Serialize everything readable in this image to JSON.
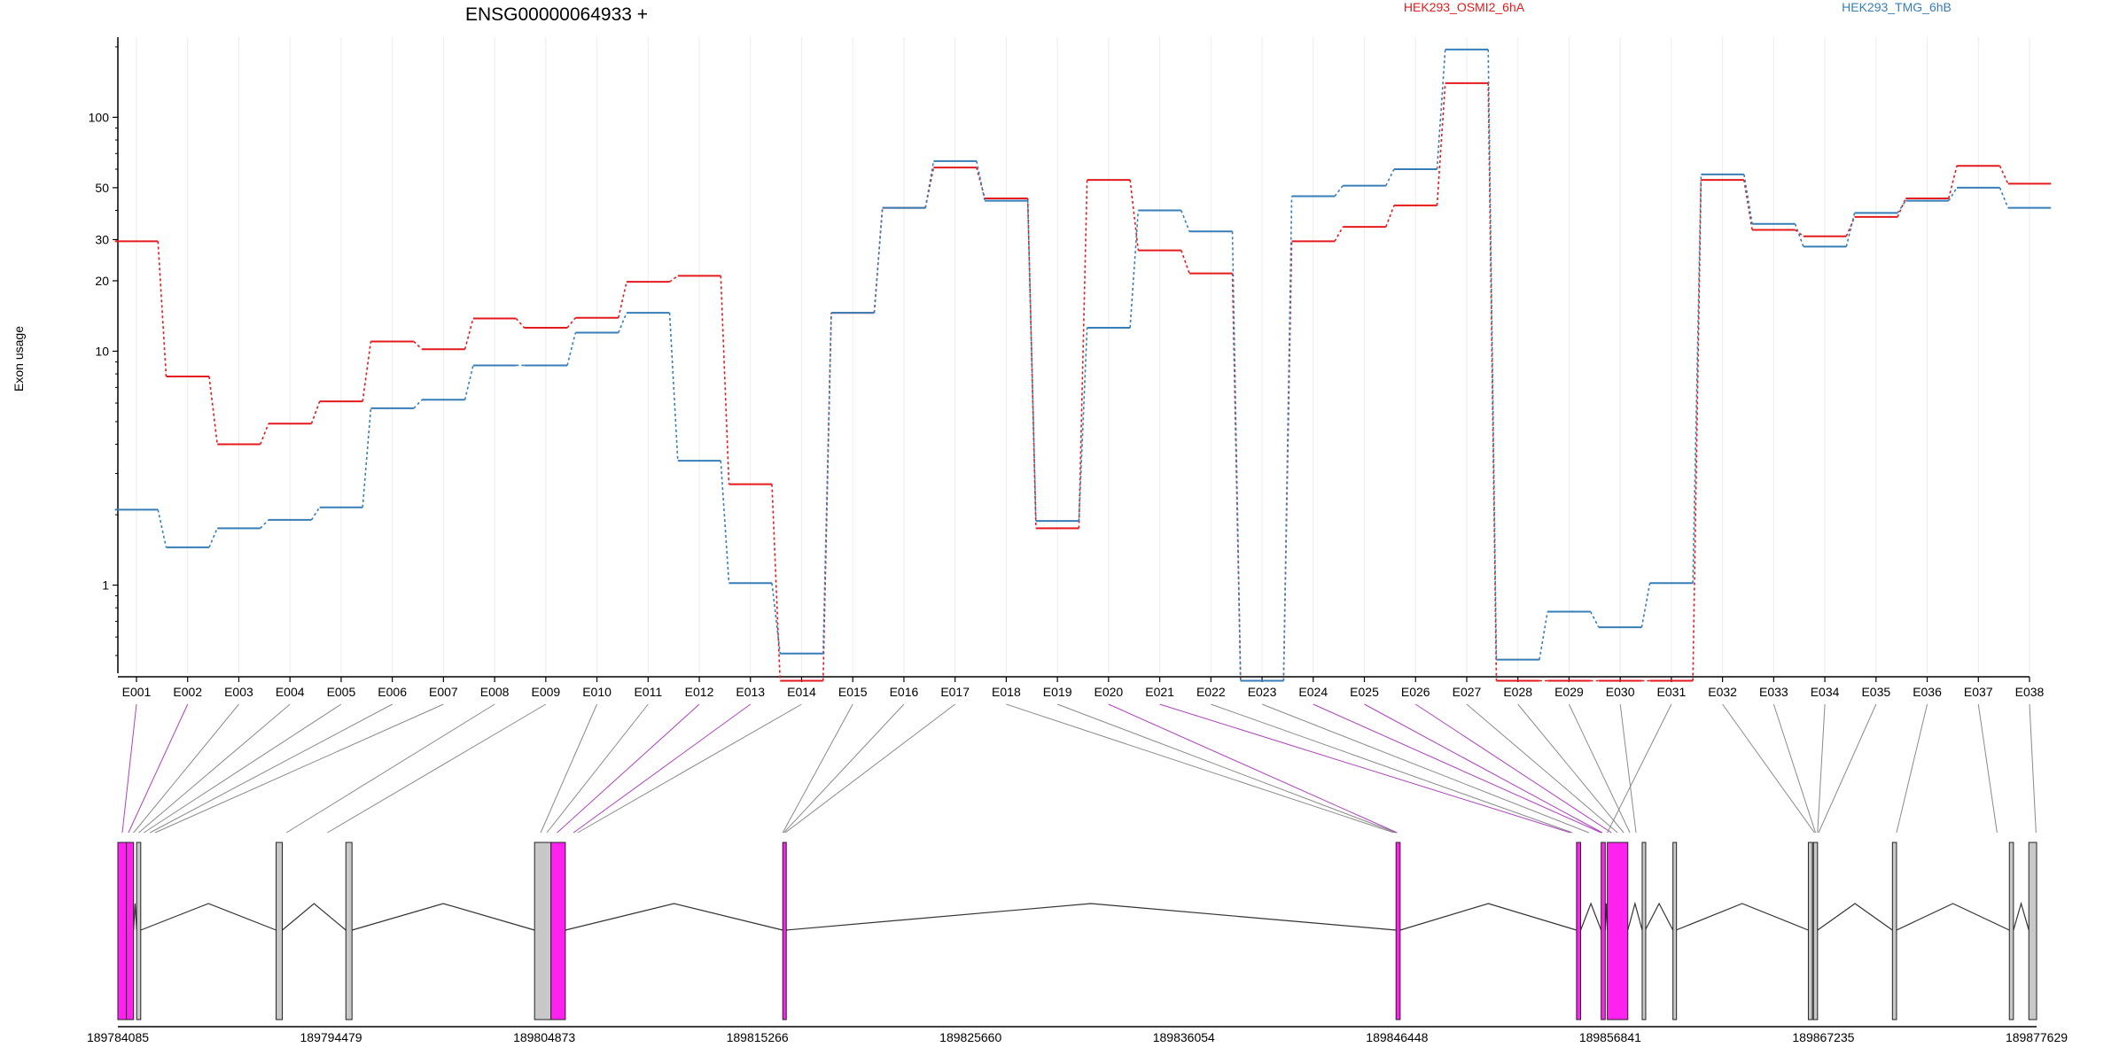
{
  "chart_data": {
    "type": "line",
    "title": "ENSG00000064933 +",
    "ylabel": "Exon usage",
    "xlabel": "",
    "y_scale": "log",
    "y_ticks": [
      1,
      10,
      20,
      30,
      50,
      100
    ],
    "ylim": [
      0.42,
      220
    ],
    "grid": "vertical",
    "legend_placement": "top",
    "categories": [
      "E001",
      "E002",
      "E003",
      "E004",
      "E005",
      "E006",
      "E007",
      "E008",
      "E009",
      "E010",
      "E011",
      "E012",
      "E013",
      "E014",
      "E015",
      "E016",
      "E017",
      "E018",
      "E019",
      "E020",
      "E021",
      "E022",
      "E023",
      "E024",
      "E025",
      "E026",
      "E027",
      "E028",
      "E029",
      "E030",
      "E031",
      "E032",
      "E033",
      "E034",
      "E035",
      "E036",
      "E037",
      "E038"
    ],
    "series": [
      {
        "name": "HEK293_OSMI2_6hA",
        "color": "#e41a1c",
        "values": [
          29.5,
          7.8,
          4.0,
          4.9,
          6.1,
          11,
          10.2,
          13.8,
          12.6,
          13.9,
          19.8,
          21,
          2.7,
          0.39,
          14.6,
          41,
          61,
          45,
          1.75,
          54,
          27,
          21.5,
          0.39,
          29.5,
          34,
          42,
          140,
          0.39,
          0.39,
          0.39,
          0.39,
          54,
          33,
          31,
          37.5,
          45,
          62,
          52
        ]
      },
      {
        "name": "HEK293_TMG_6hB",
        "color": "#377eb8",
        "values": [
          2.1,
          1.45,
          1.75,
          1.9,
          2.15,
          5.7,
          6.2,
          8.7,
          8.7,
          12,
          14.6,
          3.4,
          1.02,
          0.51,
          14.6,
          41,
          65,
          44,
          1.88,
          12.6,
          40,
          32.5,
          0.39,
          46,
          51,
          60,
          195,
          0.48,
          0.77,
          0.66,
          1.02,
          57,
          35,
          28,
          39,
          44,
          50,
          41
        ]
      }
    ],
    "gene_model": {
      "coordinate_ticks": [
        189784085,
        189794479,
        189804873,
        189815266,
        189825660,
        189836054,
        189846448,
        189856841,
        189867235,
        189877629
      ],
      "exon_colors": {
        "highlighted": "#ff22ee",
        "plain": "#c8c8c8"
      },
      "highlighted_exons": [
        "E001",
        "E002",
        "E012",
        "E013",
        "E020",
        "E021",
        "E024",
        "E025",
        "E026"
      ]
    }
  }
}
